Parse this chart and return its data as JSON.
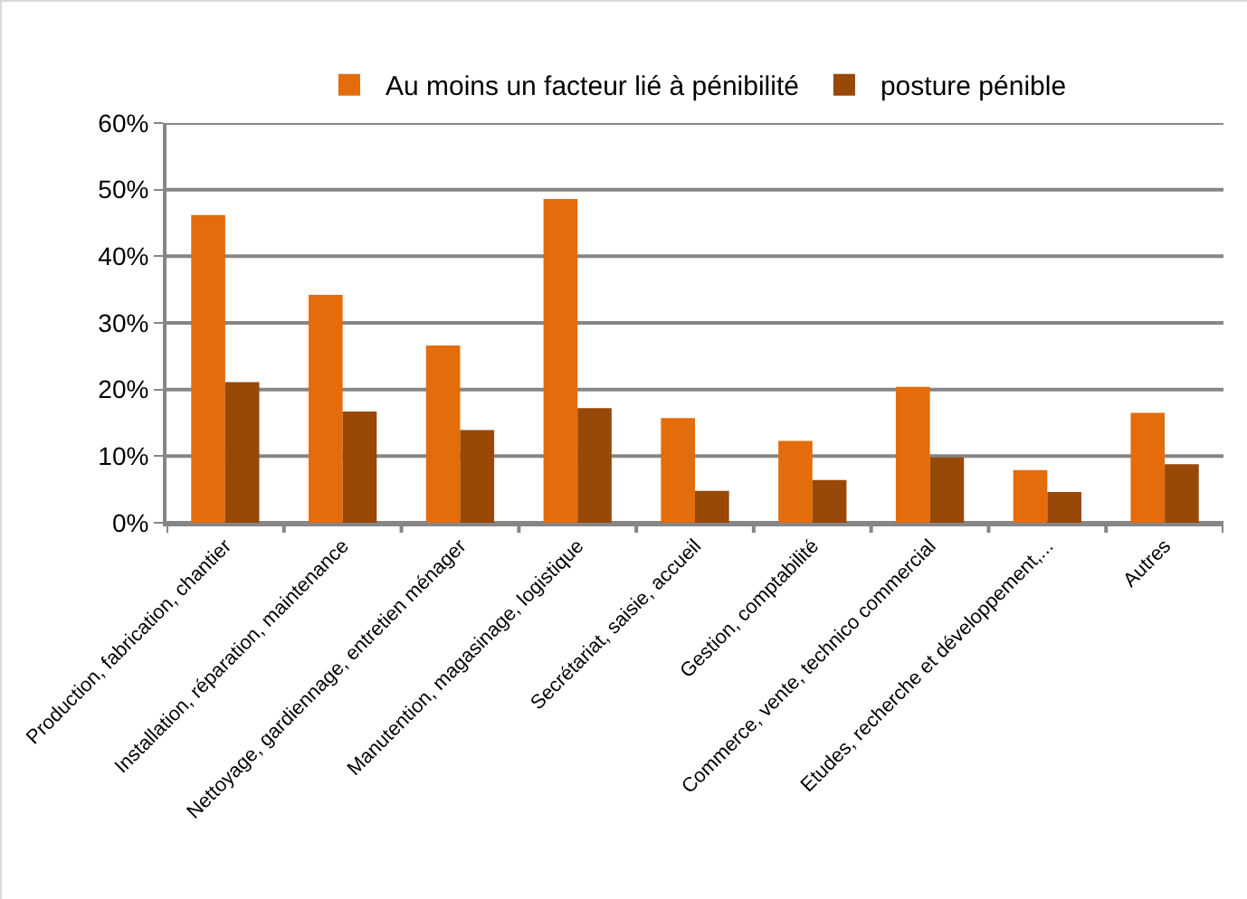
{
  "chart_data": {
    "type": "bar",
    "categories": [
      "Production, fabrication, chantier",
      "Installation, réparation, maintenance",
      "Nettoyage, gardiennage, entretien ménager",
      "Manutention, magasinage, logistique",
      "Secrétariat, saisie, accueil",
      "Gestion, comptabilité",
      "Commerce, vente, technico commercial",
      "Etudes, recherche et développement,...",
      "Autres"
    ],
    "series": [
      {
        "name": "Au moins un facteur lié à pénibilité",
        "color": "#e46c0a",
        "values": [
          46.2,
          34.2,
          26.6,
          48.6,
          15.7,
          12.3,
          20.4,
          7.9,
          16.5
        ]
      },
      {
        "name": "posture pénible",
        "color": "#984807",
        "values": [
          21.1,
          16.7,
          13.9,
          17.2,
          4.8,
          6.4,
          9.8,
          4.6,
          8.8
        ]
      }
    ],
    "ylim": [
      0,
      60
    ],
    "yticks": [
      {
        "value": 0,
        "label": "0%"
      },
      {
        "value": 10,
        "label": "10%"
      },
      {
        "value": 20,
        "label": "20%"
      },
      {
        "value": 30,
        "label": "30%"
      },
      {
        "value": 40,
        "label": "40%"
      },
      {
        "value": 50,
        "label": "50%"
      },
      {
        "value": 60,
        "label": "60%"
      }
    ],
    "grid": "y",
    "legend": "top"
  }
}
